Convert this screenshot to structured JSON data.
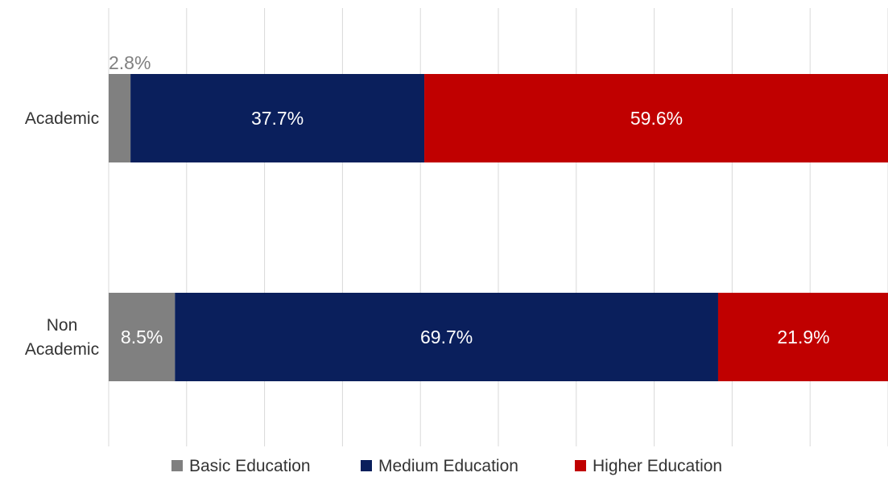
{
  "chart_data": {
    "type": "bar",
    "orientation": "horizontal",
    "stacked": "percent",
    "title": "",
    "xlabel": "",
    "ylabel": "",
    "xlim": [
      0,
      100
    ],
    "grid": true,
    "legend_position": "bottom",
    "categories": [
      "Academic",
      "Non Academic"
    ],
    "category_lines": [
      [
        "Academic"
      ],
      [
        "Non",
        "Academic"
      ]
    ],
    "series": [
      {
        "name": "Basic Education",
        "color": "#808080",
        "values": [
          2.8,
          8.5
        ],
        "labels": [
          "2.8%",
          "8.5%"
        ]
      },
      {
        "name": "Medium Education",
        "color": "#0A1F5C",
        "values": [
          37.7,
          69.7
        ],
        "labels": [
          "37.7%",
          "69.7%"
        ]
      },
      {
        "name": "Higher Education",
        "color": "#C00000",
        "values": [
          59.6,
          21.9
        ],
        "labels": [
          "59.6%",
          "21.9%"
        ]
      }
    ],
    "label_colors": {
      "inside": "#FFFFFF",
      "outside": "#808080"
    }
  }
}
